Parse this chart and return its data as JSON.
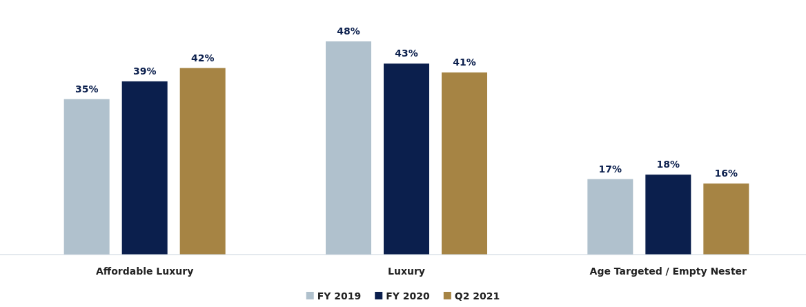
{
  "chart_data": {
    "type": "bar",
    "categories": [
      "Affordable Luxury",
      "Luxury",
      "Age Targeted / Empty Nester"
    ],
    "series": [
      {
        "name": "FY 2019",
        "color": "#b0c1cd",
        "values": [
          35,
          48,
          17
        ],
        "value_labels": [
          "35%",
          "48%",
          "17%"
        ]
      },
      {
        "name": "FY 2020",
        "color": "#0b1f4d",
        "values": [
          39,
          43,
          18
        ],
        "value_labels": [
          "39%",
          "43%",
          "18%"
        ]
      },
      {
        "name": "Q2 2021",
        "color": "#a68444",
        "values": [
          42,
          41,
          16
        ],
        "value_labels": [
          "42%",
          "41%",
          "16%"
        ]
      }
    ],
    "legend": "bottom"
  }
}
